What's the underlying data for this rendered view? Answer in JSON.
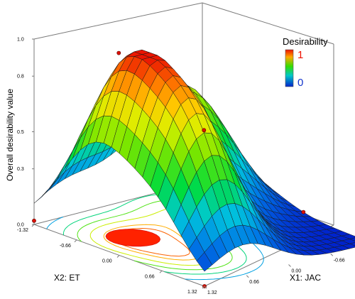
{
  "chart_data": {
    "type": "surface3d",
    "title": "",
    "zlabel": "Overall desirability value",
    "xlabel": "X1: JAC",
    "ylabel": "X2: ET",
    "x_ticks": [
      "-1.32",
      "-0.66",
      "0.00",
      "0.66",
      "1.32"
    ],
    "y_ticks": [
      "-1.32",
      "-0.66",
      "0.00",
      "0.66",
      "1.32"
    ],
    "z_ticks": [
      "0.0",
      "0.3",
      "0.5",
      "0.8",
      "1.0"
    ],
    "xlim": [
      -1.32,
      1.32
    ],
    "ylim": [
      -1.32,
      1.32
    ],
    "zlim": [
      0,
      1
    ],
    "legend": {
      "title": "Desirability",
      "max_label": "1",
      "min_label": "0",
      "position": "top-right"
    },
    "colorscale": [
      "#0022cc",
      "#00c8e0",
      "#00dd22",
      "#c8f000",
      "#ffdd00",
      "#ff7700",
      "#ee1100"
    ],
    "surface_model": {
      "description_free": true,
      "peaks": [
        {
          "x": -0.75,
          "y": -0.35,
          "z": 0.92,
          "sx": 0.55,
          "sy": 0.55
        },
        {
          "x": -0.7,
          "y": 0.6,
          "z": 0.58,
          "sx": 0.5,
          "sy": 0.45
        },
        {
          "x": 0.45,
          "y": -0.7,
          "z": 0.6,
          "sx": 0.5,
          "sy": 0.55
        }
      ],
      "grid_n": 22
    },
    "design_points": [
      {
        "x": -1.32,
        "y": -1.32,
        "z": 0.02
      },
      {
        "x": -1.32,
        "y": 1.32,
        "z": 0.0
      },
      {
        "x": 1.32,
        "y": 1.32,
        "z": 0.05
      },
      {
        "x": -0.66,
        "y": -0.66,
        "z": 0.95
      },
      {
        "x": 0.9,
        "y": 0.66,
        "z": 0.12
      },
      {
        "x": -0.66,
        "y": 0.66,
        "z": 0.7
      }
    ],
    "contour_levels": [
      0.2,
      0.35,
      0.5,
      0.65,
      0.8,
      0.88
    ],
    "grid": false
  }
}
